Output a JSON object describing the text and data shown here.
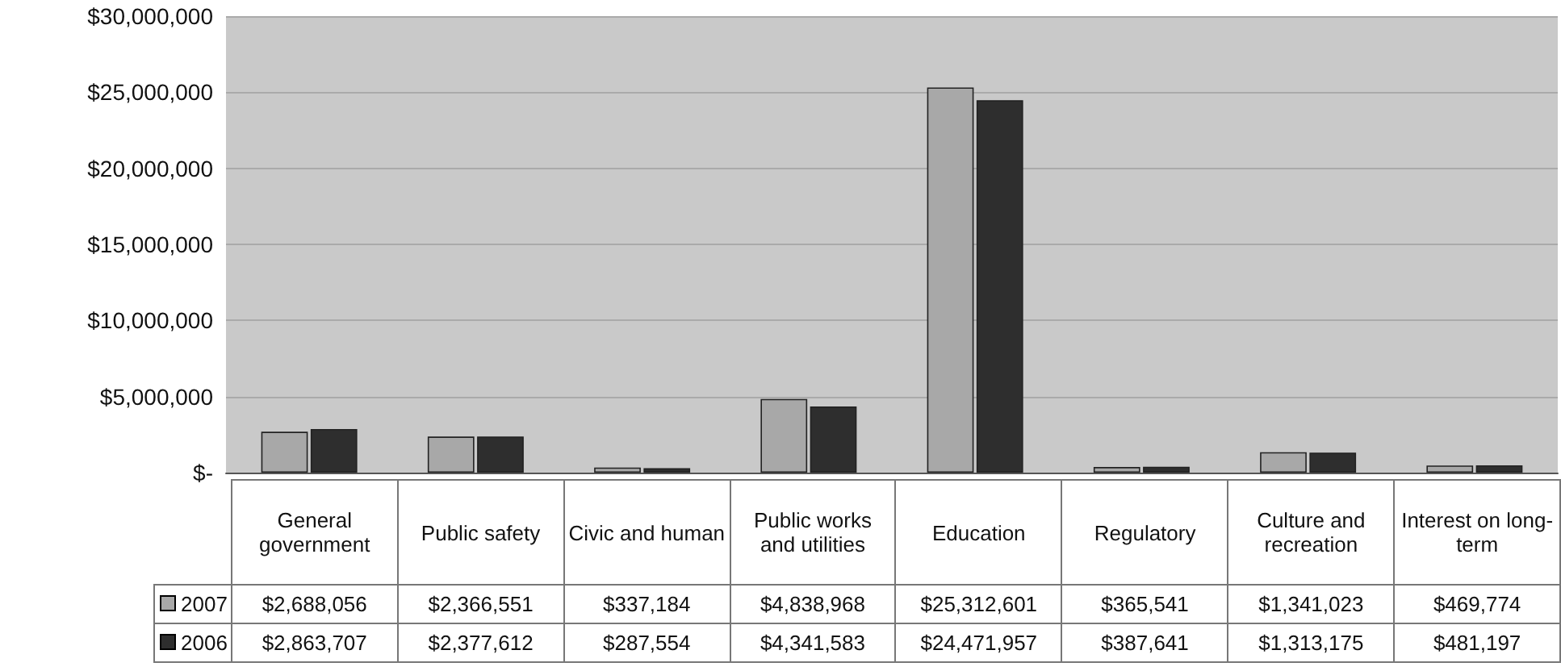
{
  "chart_data": {
    "type": "bar",
    "categories": [
      "General government",
      "Public safety",
      "Civic and human",
      "Public works and utilities",
      "Education",
      "Regulatory",
      "Culture and recreation",
      "Interest on long-term"
    ],
    "series": [
      {
        "name": "2007",
        "color": "#a8a8a8",
        "values": [
          2688056,
          2366551,
          337184,
          4838968,
          25312601,
          365541,
          1341023,
          469774
        ],
        "value_labels": [
          "$2,688,056",
          "$2,366,551",
          "$337,184",
          "$4,838,968",
          "$25,312,601",
          "$365,541",
          "$1,341,023",
          "$469,774"
        ]
      },
      {
        "name": "2006",
        "color": "#2e2e2e",
        "values": [
          2863707,
          2377612,
          287554,
          4341583,
          24471957,
          387641,
          1313175,
          481197
        ],
        "value_labels": [
          "$2,863,707",
          "$2,377,612",
          "$287,554",
          "$4,341,583",
          "$24,471,957",
          "$387,641",
          "$1,313,175",
          "$481,197"
        ]
      }
    ],
    "ylim": [
      0,
      30000000
    ],
    "yticks": [
      {
        "value": 0,
        "label": "$-"
      },
      {
        "value": 5000000,
        "label": "$5,000,000"
      },
      {
        "value": 10000000,
        "label": "$10,000,000"
      },
      {
        "value": 15000000,
        "label": "$15,000,000"
      },
      {
        "value": 20000000,
        "label": "$20,000,000"
      },
      {
        "value": 25000000,
        "label": "$25,000,000"
      },
      {
        "value": 30000000,
        "label": "$30,000,000"
      }
    ],
    "grid": "y",
    "legend": "bottom"
  }
}
